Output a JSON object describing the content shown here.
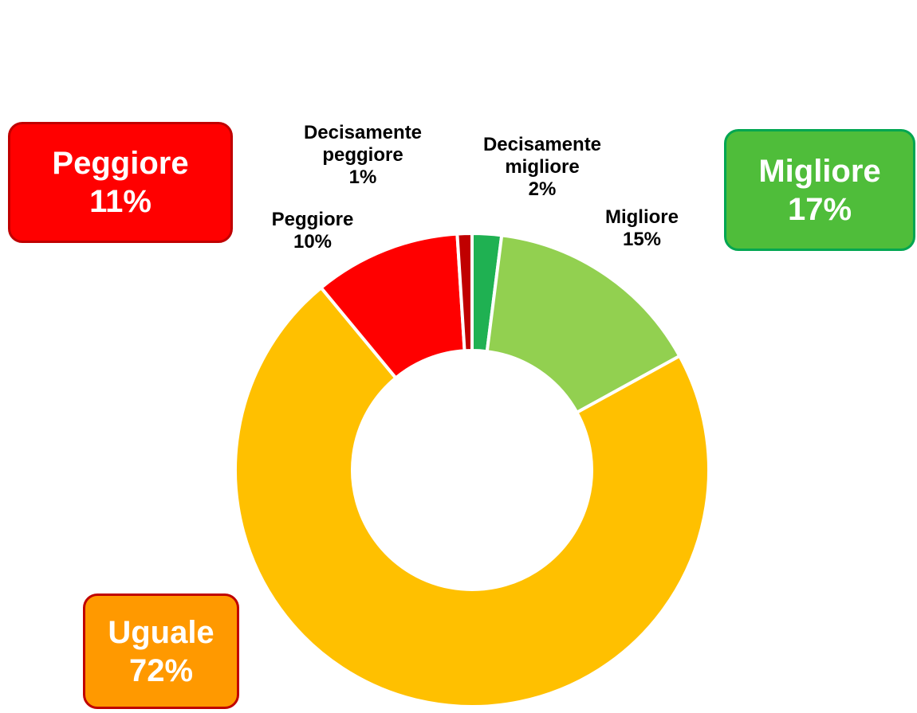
{
  "chart_data": {
    "type": "donut",
    "categories": [
      "Decisamente migliore",
      "Migliore",
      "Uguale",
      "Peggiore",
      "Decisamente peggiore"
    ],
    "values": [
      2,
      15,
      72,
      10,
      1
    ],
    "value_labels": [
      "2%",
      "15%",
      null,
      "10%",
      "1%"
    ],
    "colors": [
      "#1fb152",
      "#92d050",
      "#ffc000",
      "#ff0000",
      "#c00000"
    ],
    "annotations": [
      {
        "name": "Peggiore",
        "text": "11%",
        "color": "#ff0000",
        "border": "#c00000"
      },
      {
        "name": "Migliore",
        "text": "17%",
        "color": "#4fbd3a",
        "border": "#00a651"
      },
      {
        "name": "Uguale",
        "text": "72%",
        "color": "#ff9900",
        "border": "#c00000"
      }
    ]
  }
}
